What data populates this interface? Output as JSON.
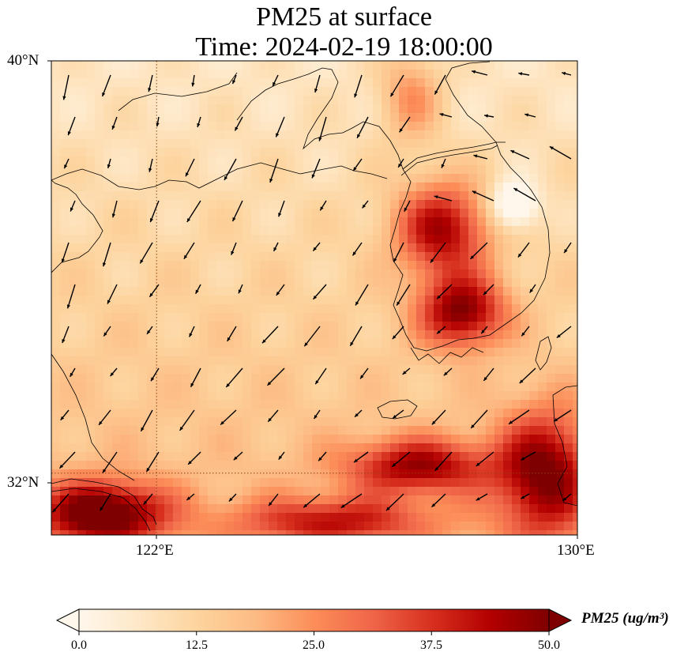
{
  "title": {
    "line1": "PM25 at surface",
    "line2": "Time: 2024-02-19 18:00:00"
  },
  "map": {
    "variable": "PM25",
    "lat_range": [
      30.8,
      40.0
    ],
    "lon_range": [
      120.0,
      130.0
    ],
    "gridlines": {
      "lon": [
        122
      ],
      "lat": [
        32
      ],
      "style": "dotted"
    },
    "y_tick_labels": [
      "40°N",
      "32°N"
    ],
    "x_tick_labels": [
      "122°E",
      "130°E"
    ],
    "feature_colors": {
      "coastline": "#000000",
      "vector": "#000000",
      "gridline": "#8b4513"
    }
  },
  "colorbar": {
    "colormap": "OrRd",
    "stops": [
      "#fff7ec",
      "#fee8c8",
      "#fdd49e",
      "#fdbb84",
      "#fc8d59",
      "#ef6548",
      "#d7301f",
      "#b30000",
      "#7f0000"
    ],
    "vmin": 0,
    "vmax": 50,
    "ticks": [
      "0.0",
      "12.5",
      "25.0",
      "37.5",
      "50.0"
    ],
    "extend": "both",
    "label": "PM25 (ug/m³)"
  }
}
